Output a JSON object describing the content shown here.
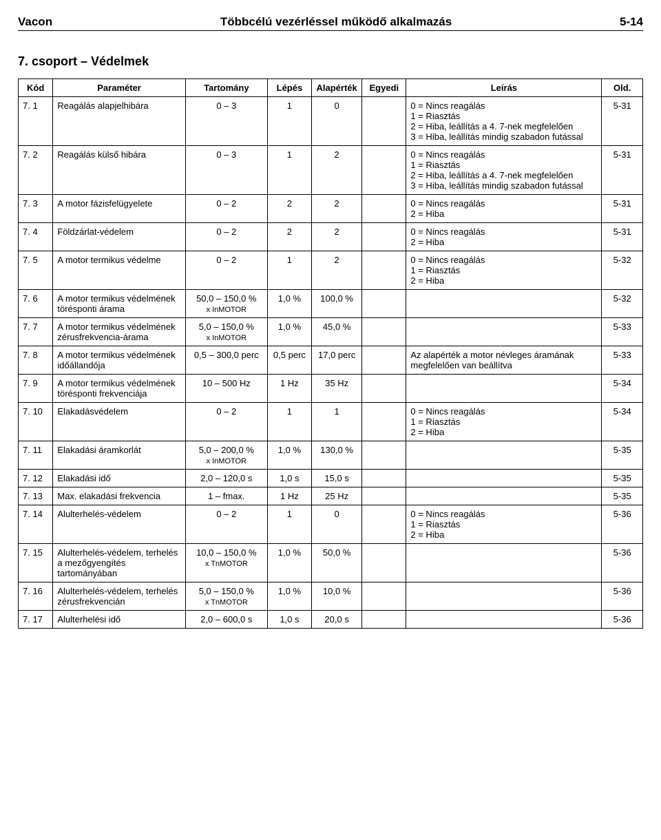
{
  "header": {
    "left": "Vacon",
    "center": "Többcélú vezérléssel működő alkalmazás",
    "right": "5-14"
  },
  "section_title": "7. csoport – Védelmek",
  "columns": [
    "Kód",
    "Paraméter",
    "Tartomány",
    "Lépés",
    "Alapérték",
    "Egyedi",
    "Leírás",
    "Old."
  ],
  "rows": [
    {
      "kod": "7. 1",
      "param": "Reagálás alapjelhibára",
      "tart": "0 – 3",
      "lepes": "1",
      "alap": "0",
      "egyedi": "",
      "leiras": "0 = Nincs reagálás\n1 = Riasztás\n2 = Hiba, leállítás a 4. 7-nek megfelelően\n3 = Hiba, leállítás mindig szabadon futással",
      "old": "5-31"
    },
    {
      "kod": "7. 2",
      "param": "Reagálás külső hibára",
      "tart": "0 – 3",
      "lepes": "1",
      "alap": "2",
      "egyedi": "",
      "leiras": "0 = Nincs reagálás\n1 = Riasztás\n2 = Hiba, leállítás a 4. 7-nek megfelelően\n3 = Hiba, leállítás mindig szabadon futással",
      "old": "5-31"
    },
    {
      "kod": "7. 3",
      "param": "A motor fázisfelügyelete",
      "tart": "0 – 2",
      "lepes": "2",
      "alap": "2",
      "egyedi": "",
      "leiras": "0 = Nincs reagálás\n2 = Hiba",
      "old": "5-31"
    },
    {
      "kod": "7. 4",
      "param": "Földzárlat-védelem",
      "tart": "0 – 2",
      "lepes": "2",
      "alap": "2",
      "egyedi": "",
      "leiras": "0 = Nincs reagálás\n2 = Hiba",
      "old": "5-31"
    },
    {
      "kod": "7. 5",
      "param": "A motor termikus védelme",
      "tart": "0 – 2",
      "lepes": "1",
      "alap": "2",
      "egyedi": "",
      "leiras": "0 = Nincs reagálás\n1 = Riasztás\n2 = Hiba",
      "old": "5-32"
    },
    {
      "kod": "7. 6",
      "param": "A motor termikus védelmének törésponti árama",
      "tart": "50,0 – 150,0 %",
      "tart_sub": "x InMOTOR",
      "lepes": "1,0 %",
      "alap": "100,0 %",
      "egyedi": "",
      "leiras": "",
      "old": "5-32"
    },
    {
      "kod": "7. 7",
      "param": "A motor termikus védelmének zérusfrekvencia-árama",
      "tart": "5,0 – 150,0 %",
      "tart_sub": "x InMOTOR",
      "lepes": "1,0 %",
      "alap": "45,0 %",
      "egyedi": "",
      "leiras": "",
      "old": "5-33"
    },
    {
      "kod": "7. 8",
      "param": "A motor termikus védelmének időállandója",
      "tart": "0,5 – 300,0 perc",
      "lepes": "0,5 perc",
      "alap": "17,0 perc",
      "egyedi": "",
      "leiras": "Az alapérték a motor névleges áramának megfelelően van beállítva",
      "old": "5-33"
    },
    {
      "kod": "7. 9",
      "param": "A motor termikus védelmének törésponti frekvenciája",
      "tart": "10 – 500 Hz",
      "lepes": "1 Hz",
      "alap": "35 Hz",
      "egyedi": "",
      "leiras": "",
      "old": "5-34"
    },
    {
      "kod": "7. 10",
      "param": "Elakadásvédelem",
      "tart": "0 – 2",
      "lepes": "1",
      "alap": "1",
      "egyedi": "",
      "leiras": "0 = Nincs reagálás\n1 = Riasztás\n2 = Hiba",
      "old": "5-34"
    },
    {
      "kod": "7. 11",
      "param": "Elakadási áramkorlát",
      "tart": "5,0 – 200,0 %",
      "tart_sub": "x InMOTOR",
      "lepes": "1,0 %",
      "alap": "130,0 %",
      "egyedi": "",
      "leiras": "",
      "old": "5-35"
    },
    {
      "kod": "7. 12",
      "param": "Elakadási idő",
      "tart": "2,0 – 120,0 s",
      "lepes": "1,0 s",
      "alap": "15,0 s",
      "egyedi": "",
      "leiras": "",
      "old": "5-35"
    },
    {
      "kod": "7. 13",
      "param": "Max. elakadási frekvencia",
      "tart": "1 – fmax.",
      "lepes": "1 Hz",
      "alap": "25 Hz",
      "egyedi": "",
      "leiras": "",
      "old": "5-35"
    },
    {
      "kod": "7. 14",
      "param": "Alulterhelés-védelem",
      "tart": "0 – 2",
      "lepes": "1",
      "alap": "0",
      "egyedi": "",
      "leiras": "0 = Nincs reagálás\n1 = Riasztás\n2 = Hiba",
      "old": "5-36"
    },
    {
      "kod": "7. 15",
      "param": "Alulterhelés-védelem, terhelés a mezőgyengítés tartományában",
      "tart": "10,0 – 150,0 %",
      "tart_sub": "x TnMOTOR",
      "lepes": "1,0 %",
      "alap": "50,0 %",
      "egyedi": "",
      "leiras": "",
      "old": "5-36"
    },
    {
      "kod": "7. 16",
      "param": "Alulterhelés-védelem, terhelés zérusfrekvencián",
      "tart": "5,0 – 150,0 %",
      "tart_sub": "x TnMOTOR",
      "lepes": "1,0 %",
      "alap": "10,0 %",
      "egyedi": "",
      "leiras": "",
      "old": "5-36"
    },
    {
      "kod": "7. 17",
      "param": "Alulterhelési idő",
      "tart": "2,0 – 600,0 s",
      "lepes": "1,0 s",
      "alap": "20,0 s",
      "egyedi": "",
      "leiras": "",
      "old": "5-36"
    }
  ]
}
